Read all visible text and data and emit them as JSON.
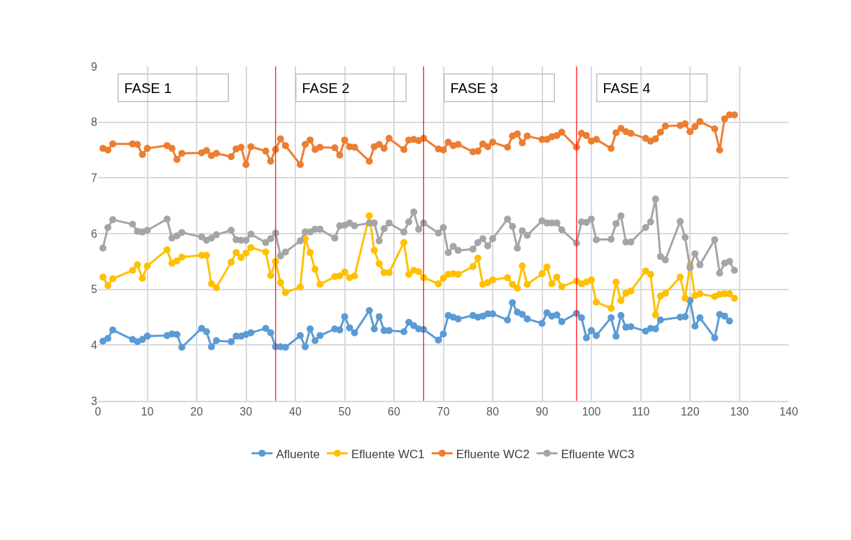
{
  "chart_data": {
    "type": "line",
    "xlim": [
      0,
      140
    ],
    "xticks": [
      0,
      10,
      20,
      30,
      40,
      50,
      60,
      70,
      80,
      90,
      100,
      110,
      120,
      130,
      140
    ],
    "ylim": [
      3,
      9
    ],
    "yticks": [
      3,
      4,
      5,
      6,
      7,
      8,
      9
    ],
    "grid": true,
    "legend": "bottom",
    "marker": "circle",
    "line_style": "solid",
    "annotations": [
      "FASE 1",
      "FASE 2",
      "FASE 3",
      "FASE 4"
    ],
    "ref_lines": [
      {
        "axis": "x",
        "value": 36,
        "label": null,
        "color": "#ff0000"
      },
      {
        "axis": "x",
        "value": 66,
        "label": null,
        "color": "#ff0000"
      },
      {
        "axis": "x",
        "value": 97,
        "label": null,
        "color": "#ff0000"
      }
    ],
    "series": [
      {
        "name": "Afluente",
        "color": "#5b9bd5",
        "x": [
          1,
          2,
          3,
          7,
          8,
          9,
          10,
          14,
          15,
          16,
          17,
          21,
          22,
          23,
          24,
          27,
          28,
          29,
          30,
          31,
          34,
          35,
          36,
          37,
          38,
          41,
          42,
          43,
          44,
          45,
          48,
          49,
          50,
          51,
          52,
          55,
          56,
          57,
          58,
          59,
          62,
          63,
          64,
          65,
          66,
          69,
          70,
          71,
          72,
          73,
          76,
          77,
          78,
          79,
          80,
          83,
          84,
          85,
          86,
          87,
          90,
          91,
          92,
          93,
          94,
          97,
          98,
          99,
          100,
          101,
          104,
          105,
          106,
          107,
          108,
          111,
          112,
          113,
          114,
          118,
          119,
          120,
          121,
          122,
          125,
          126,
          127,
          128
        ],
        "values": [
          4.07,
          4.12,
          4.27,
          4.1,
          4.06,
          4.1,
          4.16,
          4.17,
          4.2,
          4.19,
          3.96,
          4.3,
          4.24,
          3.97,
          4.08,
          4.06,
          4.16,
          4.16,
          4.19,
          4.22,
          4.3,
          4.22,
          3.97,
          3.97,
          3.96,
          4.17,
          3.97,
          4.29,
          4.08,
          4.17,
          4.29,
          4.27,
          4.51,
          4.31,
          4.22,
          4.62,
          4.29,
          4.51,
          4.26,
          4.26,
          4.24,
          4.41,
          4.35,
          4.29,
          4.28,
          4.09,
          4.2,
          4.53,
          4.5,
          4.47,
          4.53,
          4.5,
          4.52,
          4.56,
          4.56,
          4.45,
          4.76,
          4.59,
          4.55,
          4.47,
          4.39,
          4.58,
          4.52,
          4.54,
          4.42,
          4.57,
          4.49,
          4.13,
          4.26,
          4.17,
          4.49,
          4.16,
          4.53,
          4.32,
          4.33,
          4.25,
          4.3,
          4.29,
          4.45,
          4.5,
          4.51,
          4.8,
          4.34,
          4.49,
          4.13,
          4.55,
          4.52,
          4.43
        ]
      },
      {
        "name": "Efluente WC1",
        "color": "#ffc000",
        "x": [
          1,
          2,
          3,
          7,
          8,
          9,
          10,
          14,
          15,
          16,
          17,
          21,
          22,
          23,
          24,
          27,
          28,
          29,
          30,
          31,
          34,
          35,
          36,
          37,
          38,
          41,
          42,
          43,
          44,
          45,
          48,
          49,
          50,
          51,
          52,
          55,
          56,
          57,
          58,
          59,
          62,
          63,
          64,
          65,
          66,
          69,
          70,
          71,
          72,
          73,
          76,
          77,
          78,
          79,
          80,
          83,
          84,
          85,
          86,
          87,
          90,
          91,
          92,
          93,
          94,
          97,
          98,
          99,
          100,
          101,
          104,
          105,
          106,
          107,
          108,
          111,
          112,
          113,
          114,
          115,
          118,
          119,
          120,
          121,
          122,
          125,
          126,
          127,
          128,
          129
        ],
        "values": [
          5.22,
          5.07,
          5.19,
          5.34,
          5.44,
          5.2,
          5.42,
          5.71,
          5.47,
          5.51,
          5.58,
          5.61,
          5.61,
          5.1,
          5.03,
          5.49,
          5.66,
          5.57,
          5.65,
          5.75,
          5.67,
          5.25,
          5.5,
          5.12,
          4.94,
          5.04,
          5.91,
          5.66,
          5.36,
          5.09,
          5.23,
          5.24,
          5.31,
          5.21,
          5.24,
          6.32,
          5.7,
          5.46,
          5.3,
          5.3,
          5.84,
          5.27,
          5.34,
          5.32,
          5.21,
          5.1,
          5.2,
          5.27,
          5.28,
          5.27,
          5.41,
          5.56,
          5.09,
          5.12,
          5.17,
          5.21,
          5.09,
          5.02,
          5.42,
          5.09,
          5.28,
          5.4,
          5.1,
          5.22,
          5.05,
          5.15,
          5.1,
          5.13,
          5.17,
          4.77,
          4.66,
          5.13,
          4.8,
          4.93,
          4.97,
          5.33,
          5.27,
          4.54,
          4.88,
          4.93,
          5.22,
          4.84,
          5.44,
          4.89,
          4.92,
          4.87,
          4.91,
          4.92,
          4.92,
          4.84
        ]
      },
      {
        "name": "Efluente WC2",
        "color": "#ed7d31",
        "x": [
          1,
          2,
          3,
          7,
          8,
          9,
          10,
          14,
          15,
          16,
          17,
          21,
          22,
          23,
          24,
          27,
          28,
          29,
          30,
          31,
          34,
          35,
          36,
          37,
          38,
          41,
          42,
          43,
          44,
          45,
          48,
          49,
          50,
          51,
          52,
          55,
          56,
          57,
          58,
          59,
          62,
          63,
          64,
          65,
          66,
          69,
          70,
          71,
          72,
          73,
          76,
          77,
          78,
          79,
          80,
          83,
          84,
          85,
          86,
          87,
          90,
          91,
          92,
          93,
          94,
          97,
          98,
          99,
          100,
          101,
          104,
          105,
          106,
          107,
          108,
          111,
          112,
          113,
          114,
          115,
          118,
          119,
          120,
          121,
          122,
          125,
          126,
          127,
          128,
          129
        ],
        "values": [
          7.53,
          7.5,
          7.61,
          7.61,
          7.6,
          7.42,
          7.53,
          7.58,
          7.53,
          7.33,
          7.44,
          7.45,
          7.49,
          7.4,
          7.44,
          7.38,
          7.52,
          7.55,
          7.24,
          7.56,
          7.48,
          7.3,
          7.51,
          7.7,
          7.58,
          7.24,
          7.6,
          7.68,
          7.51,
          7.55,
          7.54,
          7.41,
          7.68,
          7.56,
          7.55,
          7.3,
          7.56,
          7.6,
          7.53,
          7.71,
          7.51,
          7.68,
          7.69,
          7.67,
          7.71,
          7.52,
          7.5,
          7.64,
          7.58,
          7.6,
          7.47,
          7.48,
          7.61,
          7.56,
          7.64,
          7.55,
          7.75,
          7.79,
          7.63,
          7.75,
          7.69,
          7.69,
          7.74,
          7.76,
          7.82,
          7.55,
          7.8,
          7.76,
          7.66,
          7.69,
          7.53,
          7.81,
          7.89,
          7.83,
          7.8,
          7.71,
          7.66,
          7.7,
          7.82,
          7.93,
          7.94,
          7.97,
          7.83,
          7.92,
          8.01,
          7.88,
          7.5,
          8.06,
          8.13,
          8.13
        ]
      },
      {
        "name": "Efluente WC3",
        "color": "#a5a5a5",
        "x": [
          1,
          2,
          3,
          7,
          8,
          9,
          10,
          14,
          15,
          16,
          17,
          21,
          22,
          23,
          24,
          27,
          28,
          29,
          30,
          31,
          34,
          35,
          36,
          37,
          38,
          41,
          42,
          43,
          44,
          45,
          48,
          49,
          50,
          51,
          52,
          55,
          56,
          57,
          58,
          59,
          62,
          63,
          64,
          65,
          66,
          69,
          70,
          71,
          72,
          73,
          76,
          77,
          78,
          79,
          80,
          83,
          84,
          85,
          86,
          87,
          90,
          91,
          92,
          93,
          94,
          97,
          98,
          99,
          100,
          101,
          104,
          105,
          106,
          107,
          108,
          111,
          112,
          113,
          114,
          115,
          118,
          119,
          120,
          121,
          122,
          125,
          126,
          127,
          128,
          129
        ],
        "values": [
          5.74,
          6.11,
          6.25,
          6.17,
          6.04,
          6.03,
          6.06,
          6.26,
          5.92,
          5.96,
          6.02,
          5.94,
          5.88,
          5.92,
          5.98,
          6.06,
          5.89,
          5.88,
          5.88,
          5.99,
          5.84,
          5.91,
          6.01,
          5.6,
          5.67,
          5.87,
          6.03,
          6.03,
          6.08,
          6.08,
          5.92,
          6.14,
          6.15,
          6.19,
          6.14,
          6.19,
          6.19,
          5.87,
          6.09,
          6.19,
          6.03,
          6.21,
          6.39,
          6.08,
          6.19,
          6.01,
          6.11,
          5.66,
          5.77,
          5.7,
          5.72,
          5.84,
          5.91,
          5.78,
          5.91,
          6.26,
          6.13,
          5.74,
          6.05,
          5.97,
          6.23,
          6.19,
          6.19,
          6.19,
          6.07,
          5.83,
          6.21,
          6.2,
          6.26,
          5.89,
          5.9,
          6.18,
          6.32,
          5.85,
          5.85,
          6.11,
          6.21,
          6.62,
          5.59,
          5.53,
          6.22,
          5.93,
          5.39,
          5.64,
          5.44,
          5.89,
          5.29,
          5.47,
          5.5,
          5.34
        ]
      }
    ]
  }
}
